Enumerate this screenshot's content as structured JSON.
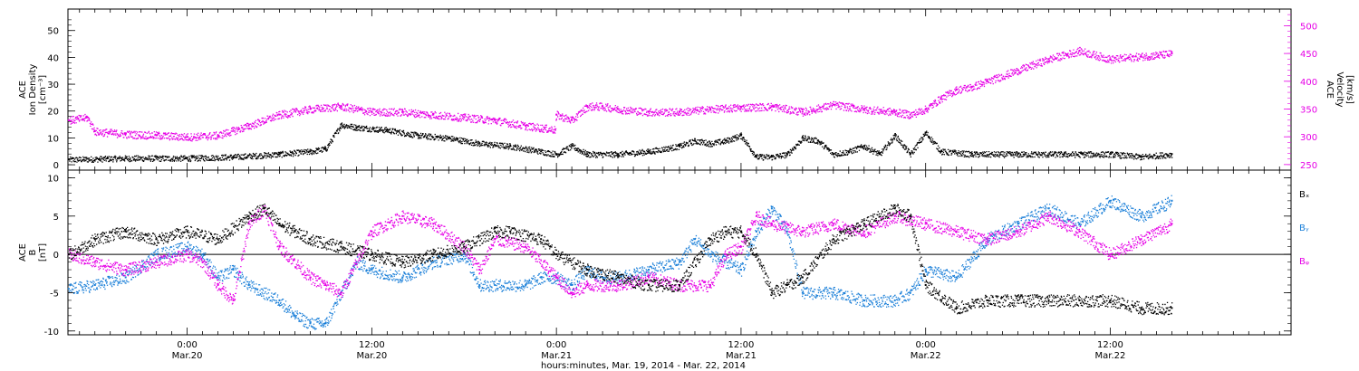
{
  "figure": {
    "x_title": "hours:minutes, Mar. 19, 2014 - Mar. 22, 2014",
    "x_ticks": [
      {
        "hours": 24,
        "time": "0:00",
        "date": "Mar.20"
      },
      {
        "hours": 36,
        "time": "12:00",
        "date": "Mar.20"
      },
      {
        "hours": 48,
        "time": "0:00",
        "date": "Mar.21"
      },
      {
        "hours": 60,
        "time": "12:00",
        "date": "Mar.21"
      },
      {
        "hours": 72,
        "time": "0:00",
        "date": "Mar.22"
      },
      {
        "hours": 84,
        "time": "12:00",
        "date": "Mar.22"
      }
    ],
    "x_range_hours": [
      16.25,
      95.75
    ]
  },
  "chart_data": [
    {
      "type": "scatter",
      "ylabel_left": [
        "ACE",
        "Ion Density",
        "[cm⁻³]"
      ],
      "ylabel_right": [
        "ACE",
        "Velocity",
        "[km/s]"
      ],
      "ylim": [
        -2,
        58
      ],
      "y_ticks": [
        0,
        10,
        20,
        30,
        40,
        50
      ],
      "y2lim": [
        240,
        530
      ],
      "y2_ticks": [
        250,
        300,
        350,
        400,
        450,
        500
      ],
      "series": [
        {
          "color": "#000000",
          "axis": "left",
          "x": [
            16.3,
            20,
            24,
            27,
            30,
            32,
            33,
            34,
            35,
            37,
            39,
            41,
            43,
            45,
            47,
            48,
            49,
            50,
            52,
            54,
            56,
            57,
            58,
            59,
            60,
            61,
            62,
            63,
            64,
            65,
            66,
            67,
            68,
            69,
            70,
            71,
            72,
            73,
            75,
            78,
            81,
            84,
            86,
            88
          ],
          "y": [
            2,
            2.5,
            2.5,
            3,
            4,
            5,
            6,
            15,
            14,
            13,
            11,
            10,
            8,
            7,
            5,
            4,
            7,
            4,
            4,
            5,
            7,
            9,
            8,
            9,
            11,
            3,
            3,
            4,
            10,
            9,
            4,
            5,
            7,
            4,
            11,
            4,
            12,
            5,
            4,
            4,
            4,
            4,
            3,
            4
          ]
        },
        {
          "color": "#e600e6",
          "axis": "right",
          "x": [
            16.3,
            17.5,
            18,
            20,
            22,
            24,
            26,
            28,
            30,
            32,
            34,
            36,
            38,
            40,
            42,
            44,
            46,
            47.9,
            48,
            49,
            50,
            51,
            52,
            54,
            56,
            58,
            60,
            62,
            64,
            66,
            68,
            70,
            71,
            72,
            73,
            74,
            75,
            76,
            78,
            80,
            82,
            84,
            86,
            88
          ],
          "y": [
            330,
            335,
            310,
            305,
            303,
            300,
            303,
            320,
            340,
            350,
            355,
            345,
            345,
            340,
            335,
            330,
            320,
            313,
            340,
            330,
            355,
            355,
            350,
            345,
            345,
            350,
            353,
            355,
            345,
            358,
            350,
            345,
            340,
            350,
            370,
            385,
            390,
            400,
            420,
            440,
            455,
            440,
            445,
            450
          ]
        }
      ]
    },
    {
      "type": "scatter",
      "ylabel": [
        "ACE",
        "B",
        "[nT]"
      ],
      "ylim": [
        -10.5,
        11
      ],
      "y_ticks": [
        -10,
        -5,
        0,
        5,
        10
      ],
      "zero_line": true,
      "legend": [
        "Bₓ",
        "Bᵧ",
        "Bᵩ"
      ],
      "legend_colors": [
        "#000000",
        "#1a7fd8",
        "#e600e6"
      ],
      "series": [
        {
          "name": "Bₓ",
          "color": "#000000",
          "x": [
            16.3,
            18,
            20,
            22,
            24,
            26,
            28,
            29,
            30,
            31,
            32,
            34,
            36,
            38,
            40,
            42,
            44,
            45,
            47,
            48,
            50,
            52,
            54,
            56,
            58,
            59,
            60,
            61,
            62,
            63,
            64,
            66,
            68,
            70,
            71,
            72,
            74,
            76,
            78,
            80,
            82,
            84,
            86,
            88
          ],
          "y": [
            0,
            2,
            3,
            2,
            3,
            2,
            5,
            6,
            4,
            3,
            2,
            1,
            0,
            -1,
            0,
            1,
            3,
            3,
            2,
            0,
            -2,
            -3,
            -4,
            -4,
            2,
            3,
            3,
            0,
            -5,
            -4,
            -3,
            2,
            4,
            6,
            5,
            -4,
            -7,
            -6,
            -6,
            -6,
            -6,
            -6,
            -7,
            -7
          ]
        },
        {
          "name": "Bᵧ",
          "color": "#1a7fd8",
          "x": [
            16.3,
            18,
            20,
            22,
            24,
            25,
            26,
            27,
            28,
            30,
            31,
            32,
            33,
            34,
            35,
            36,
            38,
            40,
            42,
            43,
            44,
            46,
            47,
            48,
            49,
            50,
            51,
            52,
            54,
            56,
            57,
            58,
            60,
            61,
            62,
            63,
            64,
            66,
            68,
            70,
            71,
            72,
            74,
            76,
            78,
            80,
            82,
            84,
            86,
            88
          ],
          "y": [
            -4.5,
            -4,
            -3,
            0,
            1,
            0,
            -3,
            -2,
            -4,
            -6,
            -8,
            -9,
            -9,
            -5,
            -1,
            -2,
            -3,
            -1,
            0,
            -4,
            -4,
            -4,
            -3,
            -3,
            -4,
            -2,
            -3,
            -3,
            -2,
            -1,
            2,
            0,
            -2,
            3,
            6,
            3,
            -5,
            -5,
            -6,
            -6,
            -5,
            -2,
            -3,
            2,
            4,
            6,
            4,
            7,
            5,
            7
          ]
        },
        {
          "name": "Bᵩ",
          "color": "#e600e6",
          "x": [
            16.3,
            18,
            20,
            22,
            24,
            25,
            26,
            27,
            28,
            29,
            30,
            32,
            33,
            34,
            36,
            38,
            40,
            42,
            43,
            44,
            46,
            48,
            49,
            50,
            52,
            54,
            56,
            58,
            59,
            60,
            61,
            62,
            64,
            66,
            68,
            70,
            72,
            74,
            76,
            78,
            80,
            82,
            84,
            86,
            88
          ],
          "y": [
            0,
            -1,
            -2,
            -1,
            0,
            -1,
            -4,
            -6,
            4,
            6,
            1,
            -3,
            -4,
            -5,
            3,
            5,
            4,
            1,
            -2,
            2,
            1,
            -3,
            -5,
            -4,
            -4,
            -3,
            -4,
            -4,
            0,
            1,
            5,
            4,
            3,
            4,
            3,
            5,
            4,
            3,
            2,
            3,
            5,
            3,
            0,
            2,
            4
          ]
        }
      ]
    }
  ]
}
